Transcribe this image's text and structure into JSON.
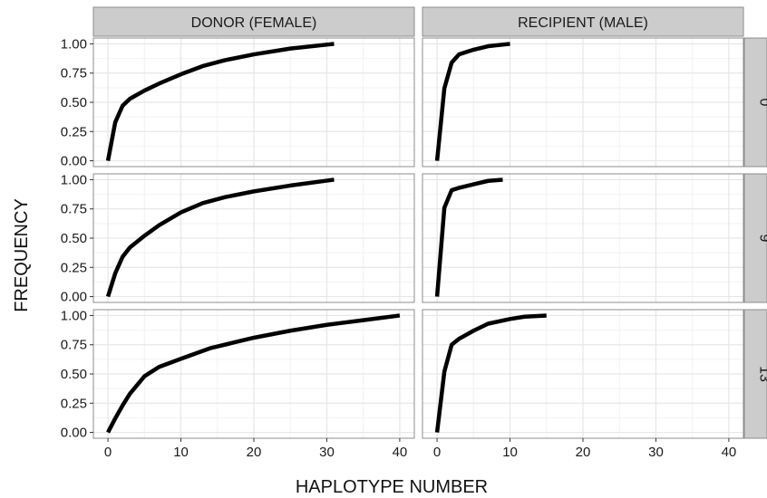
{
  "chart_data": {
    "type": "line",
    "xlabel": "HAPLOTYPE NUMBER",
    "ylabel": "FREQUENCY",
    "columns": [
      "DONOR (FEMALE)",
      "RECIPIENT (MALE)"
    ],
    "rows": [
      "0",
      "9",
      "13"
    ],
    "xlim": [
      -2,
      42
    ],
    "ylim": [
      -0.05,
      1.05
    ],
    "x_ticks": [
      "0",
      "10",
      "20",
      "30",
      "40"
    ],
    "y_ticks": [
      "0.00",
      "0.25",
      "0.50",
      "0.75",
      "1.00"
    ],
    "grid": true,
    "colors": {
      "line": "#000000",
      "panel_bg": "#ffffff",
      "grid": "#e6e6e6",
      "strip_bg": "#cccccc",
      "border": "#8c8c8c"
    },
    "panels": [
      {
        "column": "DONOR (FEMALE)",
        "row": "0",
        "x": [
          0,
          1,
          2,
          3,
          5,
          7,
          10,
          13,
          16,
          20,
          25,
          31
        ],
        "y": [
          0.0,
          0.33,
          0.47,
          0.53,
          0.6,
          0.66,
          0.74,
          0.81,
          0.86,
          0.91,
          0.96,
          1.0
        ]
      },
      {
        "column": "RECIPIENT (MALE)",
        "row": "0",
        "x": [
          0,
          1,
          2,
          3,
          5,
          7,
          10
        ],
        "y": [
          0.0,
          0.62,
          0.84,
          0.91,
          0.95,
          0.98,
          1.0
        ]
      },
      {
        "column": "DONOR (FEMALE)",
        "row": "9",
        "x": [
          0,
          1,
          2,
          3,
          5,
          7,
          10,
          13,
          16,
          20,
          25,
          31
        ],
        "y": [
          0.0,
          0.2,
          0.34,
          0.42,
          0.52,
          0.61,
          0.72,
          0.8,
          0.85,
          0.9,
          0.95,
          1.0
        ]
      },
      {
        "column": "RECIPIENT (MALE)",
        "row": "9",
        "x": [
          0,
          1,
          2,
          3,
          5,
          7,
          9
        ],
        "y": [
          0.0,
          0.76,
          0.91,
          0.93,
          0.96,
          0.99,
          1.0
        ]
      },
      {
        "column": "DONOR (FEMALE)",
        "row": "13",
        "x": [
          0,
          1,
          2,
          3,
          5,
          7,
          10,
          14,
          20,
          25,
          30,
          35,
          40
        ],
        "y": [
          0.0,
          0.12,
          0.23,
          0.33,
          0.48,
          0.56,
          0.63,
          0.72,
          0.81,
          0.87,
          0.92,
          0.96,
          1.0
        ]
      },
      {
        "column": "RECIPIENT (MALE)",
        "row": "13",
        "x": [
          0,
          1,
          2,
          3,
          5,
          7,
          10,
          12,
          15
        ],
        "y": [
          0.0,
          0.52,
          0.75,
          0.8,
          0.87,
          0.93,
          0.97,
          0.99,
          1.0
        ]
      }
    ]
  }
}
